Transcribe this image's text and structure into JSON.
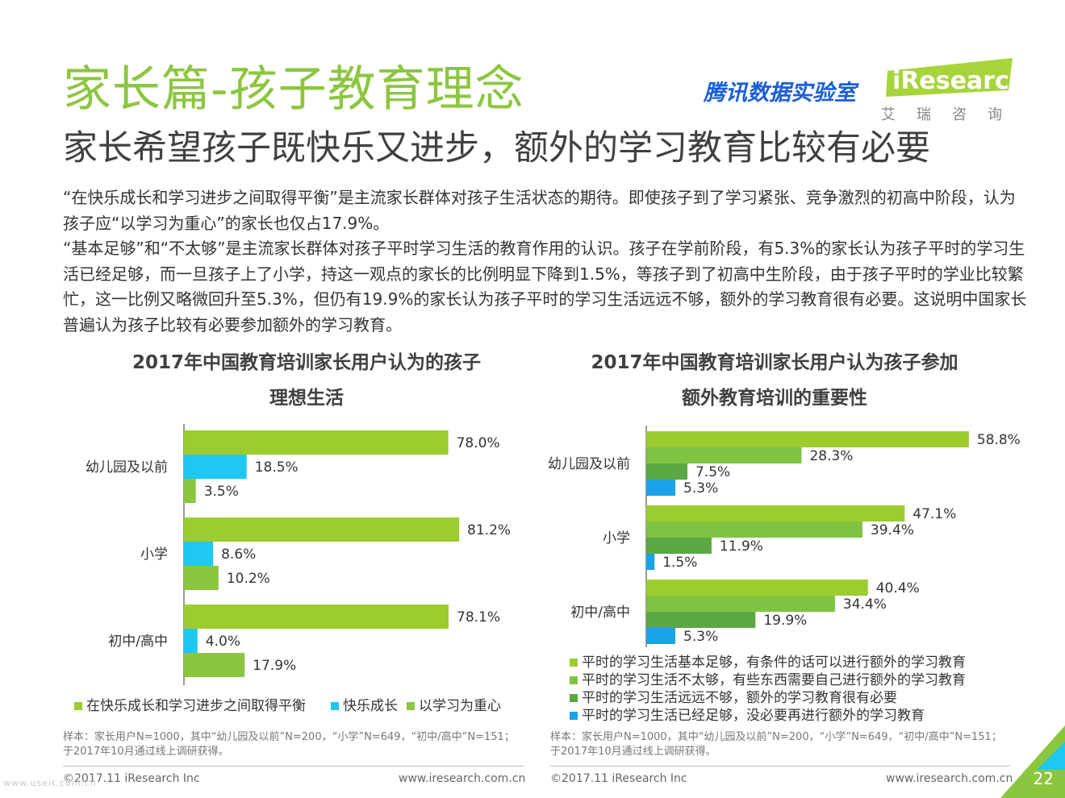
{
  "header": {
    "title": "家长篇-孩子教育理念",
    "subtitle": "家长希望孩子既快乐又进步，额外的学习教育比较有必要",
    "tencent_brand": "腾讯数据实验室",
    "iresearch_logo": "iResearch",
    "iresearch_cn": "艾瑞咨询"
  },
  "body": {
    "para1": "“在快乐成长和学习进步之间取得平衡”是主流家长群体对孩子生活状态的期待。即使孩子到了学习紧张、竞争激烈的初高中阶段，认为孩子应“以学习为重心”的家长也仅占17.9%。",
    "para2": "“基本足够”和“不太够”是主流家长群体对孩子平时学习生活的教育作用的认识。孩子在学前阶段，有5.3%的家长认为孩子平时的学习生活已经足够，而一旦孩子上了小学，持这一观点的家长的比例明显下降到1.5%，等孩子到了初高中生阶段，由于孩子平时的学业比较繁忙，这一比例又略微回升至5.3%，但仍有19.9%的家长认为孩子平时的学习生活远远不够，额外的学习教育很有必要。这说明中国家长普遍认为孩子比较有必要参加额外的学习教育。"
  },
  "colors": {
    "green_title": "#8cc63f",
    "lime": "#9ccc2e",
    "cyan": "#1ec8f0",
    "green2": "#80c342",
    "green3": "#5aa842",
    "blue": "#1aa3e8"
  },
  "chart_data": [
    {
      "type": "bar",
      "orientation": "horizontal",
      "title_line1": "2017年中国教育培训家长用户认为的孩子",
      "title_line2": "理想生活",
      "categories": [
        "幼儿园及以前",
        "小学",
        "初中/高中"
      ],
      "series": [
        {
          "name": "在快乐成长和学习进步之间取得平衡",
          "color": "#9ccc2e",
          "values": [
            78.0,
            81.2,
            78.1
          ]
        },
        {
          "name": "快乐成长",
          "color": "#1ec8f0",
          "values": [
            18.5,
            8.6,
            4.0
          ]
        },
        {
          "name": "以学习为重心",
          "color": "#8cc63f",
          "values": [
            3.5,
            10.2,
            17.9
          ]
        }
      ],
      "value_format": "%",
      "xlim": [
        0,
        100
      ],
      "legend": "bottom",
      "source": "样本：家长用户N=1000，其中“幼儿园及以前”N=200，“小学”N=649，“初中/高中”N=151；于2017年10月通过线上调研获得。"
    },
    {
      "type": "bar",
      "orientation": "horizontal",
      "title_line1": "2017年中国教育培训家长用户认为孩子参加",
      "title_line2": "额外教育培训的重要性",
      "categories": [
        "幼儿园及以前",
        "小学",
        "初中/高中"
      ],
      "series": [
        {
          "name": "平时的学习生活基本足够，有条件的话可以进行额外的学习教育",
          "color": "#9ccc2e",
          "values": [
            58.8,
            47.1,
            40.4
          ]
        },
        {
          "name": "平时的学习生活不太够，有些东西需要自己进行额外的学习教育",
          "color": "#80c342",
          "values": [
            28.3,
            39.4,
            34.4
          ]
        },
        {
          "name": "平时的学习生活远远不够，额外的学习教育很有必要",
          "color": "#5aa842",
          "values": [
            7.5,
            11.9,
            19.9
          ]
        },
        {
          "name": "平时的学习生活已经足够，没必要再进行额外的学习教育",
          "color": "#1aa3e8",
          "values": [
            5.3,
            1.5,
            5.3
          ]
        }
      ],
      "value_format": "%",
      "xlim": [
        0,
        100
      ],
      "legend": "bottom",
      "source": "样本：家长用户N=1000，其中“幼儿园及以前”N=200，“小学”N=649，“初中/高中”N=151；于2017年10月通过线上调研获得。"
    }
  ],
  "footer": {
    "copyright": "©2017.11 iResearch Inc",
    "website": "www.iresearch.com.cn",
    "page": "22",
    "watermark": "www.useit.com.cn"
  }
}
